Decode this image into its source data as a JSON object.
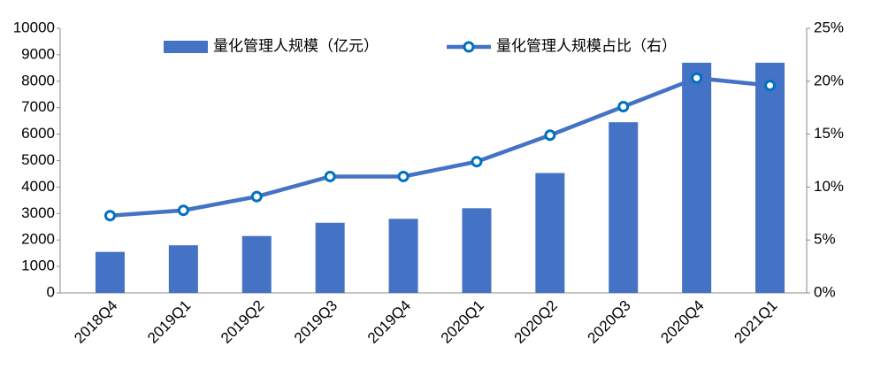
{
  "chart_data": {
    "type": "bar-line",
    "categories": [
      "2018Q4",
      "2019Q1",
      "2019Q2",
      "2019Q3",
      "2019Q4",
      "2020Q1",
      "2020Q2",
      "2020Q3",
      "2020Q4",
      "2021Q1"
    ],
    "series": [
      {
        "name": "量化管理人规模（亿元）",
        "type": "bar",
        "color": "#4472c4",
        "values": [
          1550,
          1800,
          2150,
          2650,
          2800,
          3200,
          4530,
          6450,
          8700,
          8700
        ]
      },
      {
        "name": "量化管理人规模占比（右）",
        "type": "line",
        "axis": "y2",
        "color": "#4472c4",
        "values": [
          7.3,
          7.8,
          9.1,
          11.0,
          11.0,
          12.4,
          14.9,
          17.6,
          20.3,
          19.6
        ]
      }
    ],
    "ylim": [
      0,
      10000
    ],
    "yticks": [
      0,
      1000,
      2000,
      3000,
      4000,
      5000,
      6000,
      7000,
      8000,
      9000,
      10000
    ],
    "y2lim": [
      0,
      25
    ],
    "y2ticks": [
      {
        "value": 0,
        "label": "0%"
      },
      {
        "value": 5,
        "label": "5%"
      },
      {
        "value": 10,
        "label": "10%"
      },
      {
        "value": 15,
        "label": "15%"
      },
      {
        "value": 20,
        "label": "20%"
      },
      {
        "value": 25,
        "label": "25%"
      }
    ],
    "grid": false,
    "legend": "top"
  }
}
